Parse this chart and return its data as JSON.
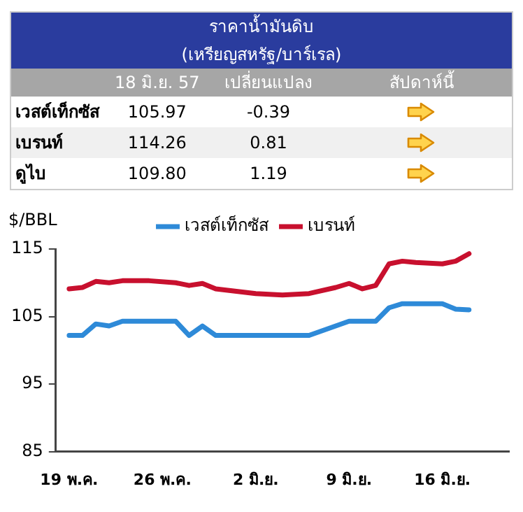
{
  "chart_data": [
    {
      "type": "other",
      "title": "ราคาน้ำมันดิบ",
      "subtitle": "(เหรียญสหรัฐ/บาร์เรล)",
      "categories": [
        null,
        "18 มิ.ย. 57",
        "เปลี่ยนแปลง",
        "สัปดาห์นี้"
      ],
      "y_categories": [
        "เวสต์เท็กซัส",
        "เบรนท์",
        "ดูไบ"
      ],
      "cell_labels": [
        [
          "105.97",
          "-0.39",
          null
        ],
        [
          "114.26",
          "0.81",
          null
        ],
        [
          "109.80",
          "1.19",
          null
        ]
      ]
    },
    {
      "type": "line",
      "ylabel": "$/BBL",
      "legend": "top",
      "grid": false,
      "marker": "none",
      "line_style": "solid",
      "xlim": [
        "--05-18",
        "--06-21"
      ],
      "xticks": [
        {
          "value": "--05-19",
          "label": "19 พ.ค."
        },
        {
          "value": "--05-26",
          "label": "26 พ.ค."
        },
        {
          "value": "--06-02",
          "label": "2 มิ.ย."
        },
        {
          "value": "--06-09",
          "label": "9 มิ.ย."
        },
        {
          "value": "--06-16",
          "label": "16 มิ.ย."
        }
      ],
      "ylim": [
        85,
        115
      ],
      "yticks": [
        85,
        95,
        105,
        115
      ],
      "series": [
        {
          "name": "เวสต์เท็กซัส",
          "color": "#2e8ad8",
          "x": [
            "--05-19",
            "--05-20",
            "--05-21",
            "--05-22",
            "--05-23",
            "--05-27",
            "--05-28",
            "--05-29",
            "--05-30",
            "--06-06",
            "--06-09",
            "--06-11",
            "--06-12",
            "--06-13",
            "--06-16",
            "--06-17",
            "--06-18"
          ],
          "values": [
            102.2,
            102.2,
            103.9,
            103.6,
            104.3,
            104.3,
            102.2,
            103.6,
            102.2,
            102.2,
            104.3,
            104.3,
            106.3,
            106.9,
            106.9,
            106.1,
            106.0
          ]
        },
        {
          "name": "เบรนท์",
          "color": "#c8102e",
          "x": [
            "--05-19",
            "--05-20",
            "--05-21",
            "--05-22",
            "--05-23",
            "--05-25",
            "--05-27",
            "--05-28",
            "--05-29",
            "--05-30",
            "--06-02",
            "--06-04",
            "--06-06",
            "--06-08",
            "--06-09",
            "--06-10",
            "--06-11",
            "--06-12",
            "--06-13",
            "--06-14",
            "--06-16",
            "--06-17",
            "--06-18"
          ],
          "values": [
            109.1,
            109.3,
            110.2,
            110.0,
            110.3,
            110.3,
            110.0,
            109.6,
            109.9,
            109.1,
            108.4,
            108.2,
            108.4,
            109.3,
            109.9,
            109.1,
            109.6,
            112.8,
            113.2,
            113.0,
            112.8,
            113.2,
            114.3
          ]
        }
      ]
    }
  ]
}
